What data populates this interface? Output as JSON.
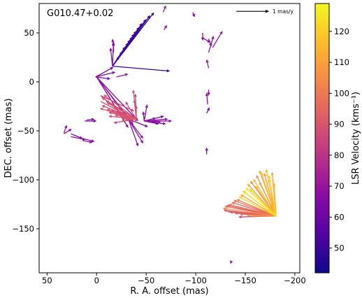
{
  "chart_data": {
    "type": "vector-map",
    "annotation": "G010.47+0.02",
    "xlabel": "R. A. offset (mas)",
    "ylabel": "DEC. offset (mas)",
    "xlim": [
      58,
      -205
    ],
    "ylim": [
      -195,
      80
    ],
    "xticks": [
      50,
      0,
      -50,
      -100,
      -150,
      -200
    ],
    "yticks": [
      50,
      0,
      -50,
      -100,
      -150
    ],
    "xtick_labels": [
      "50",
      "0",
      "−50",
      "−100",
      "−150",
      "−200"
    ],
    "ytick_labels": [
      "50",
      "0",
      "−50",
      "−100",
      "−150"
    ],
    "scale_arrow": {
      "label": "1 mas/y",
      "x": -141,
      "y": 72,
      "dx": -33,
      "dy": 0
    },
    "colorbar": {
      "label": "LSR Velocity (kms⁻¹)",
      "min": 42,
      "max": 129,
      "ticks": [
        50,
        60,
        70,
        80,
        90,
        100,
        110,
        120
      ],
      "tick_labels": [
        "50",
        "60",
        "70",
        "80",
        "90",
        "100",
        "110",
        "120"
      ],
      "colormap": "plasma"
    },
    "arrows": [
      {
        "x": -16,
        "y": 16,
        "dx": -42,
        "dy": 55,
        "v": 47
      },
      {
        "x": -16,
        "y": 16,
        "dx": -38,
        "dy": 52,
        "v": 48
      },
      {
        "x": -16,
        "y": 16,
        "dx": -34,
        "dy": 48,
        "v": 49
      },
      {
        "x": -16,
        "y": 16,
        "dx": -30,
        "dy": 44,
        "v": 50
      },
      {
        "x": -16,
        "y": 16,
        "dx": -27,
        "dy": 40,
        "v": 51
      },
      {
        "x": -16,
        "y": 16,
        "dx": -24,
        "dy": 36,
        "v": 52
      },
      {
        "x": -16,
        "y": 16,
        "dx": -22,
        "dy": 33,
        "v": 50
      },
      {
        "x": -16,
        "y": 16,
        "dx": -20,
        "dy": 30,
        "v": 53
      },
      {
        "x": -16,
        "y": 16,
        "dx": -18,
        "dy": 27,
        "v": 49
      },
      {
        "x": -16,
        "y": 16,
        "dx": -16,
        "dy": 24,
        "v": 51
      },
      {
        "x": -16,
        "y": 16,
        "dx": -13,
        "dy": 20,
        "v": 48
      },
      {
        "x": -16,
        "y": 16,
        "dx": -10,
        "dy": 15,
        "v": 52
      },
      {
        "x": -16,
        "y": 16,
        "dx": -7,
        "dy": 10,
        "v": 54
      },
      {
        "x": -16,
        "y": 16,
        "dx": -58,
        "dy": -5,
        "v": 50
      },
      {
        "x": -16,
        "y": 16,
        "dx": -1,
        "dy": 24,
        "v": 64
      },
      {
        "x": -16,
        "y": 16,
        "dx": 2,
        "dy": 19,
        "v": 66
      },
      {
        "x": -17,
        "y": 30,
        "dx": 0,
        "dy": 11,
        "v": 62
      },
      {
        "x": -17,
        "y": 35,
        "dx": 1,
        "dy": 9,
        "v": 68
      },
      {
        "x": -20,
        "y": 5,
        "dx": -12,
        "dy": 3,
        "v": 70
      },
      {
        "x": 1,
        "y": 5,
        "dx": -20,
        "dy": 5,
        "v": 64
      },
      {
        "x": 1,
        "y": 5,
        "dx": -18,
        "dy": 10,
        "v": 66
      },
      {
        "x": 1,
        "y": 5,
        "dx": -15,
        "dy": -2,
        "v": 62
      },
      {
        "x": -67,
        "y": 71,
        "dx": -3,
        "dy": 7,
        "v": 70
      },
      {
        "x": -97,
        "y": 71,
        "dx": -2,
        "dy": -5,
        "v": 66
      },
      {
        "x": -68,
        "y": 53,
        "dx": -3,
        "dy": 5,
        "v": 70
      },
      {
        "x": -107,
        "y": 45,
        "dx": -8,
        "dy": -5,
        "v": 62
      },
      {
        "x": -107,
        "y": 50,
        "dx": 0,
        "dy": -8,
        "v": 66
      },
      {
        "x": -113,
        "y": 44,
        "dx": -3,
        "dy": -8,
        "v": 68
      },
      {
        "x": -117,
        "y": 35,
        "dx": -10,
        "dy": 17,
        "v": 70
      },
      {
        "x": -113,
        "y": 30,
        "dx": -5,
        "dy": 17,
        "v": 66
      },
      {
        "x": -113,
        "y": 14,
        "dx": 2,
        "dy": 9,
        "v": 70
      },
      {
        "x": -113,
        "y": -8,
        "dx": 0,
        "dy": -6,
        "v": 66
      },
      {
        "x": -112,
        "y": -23,
        "dx": 1,
        "dy": 12,
        "v": 68
      },
      {
        "x": -111,
        "y": -32,
        "dx": -3,
        "dy": 6,
        "v": 62
      },
      {
        "x": -111,
        "y": -74,
        "dx": 0,
        "dy": 7,
        "v": 66
      },
      {
        "x": -136,
        "y": -183,
        "dx": 1,
        "dy": -3,
        "v": 68
      },
      {
        "x": 0,
        "y": 5,
        "dx": -42,
        "dy": -45,
        "v": 66
      },
      {
        "x": 0,
        "y": 5,
        "dx": -37,
        "dy": -48,
        "v": 70
      },
      {
        "x": 0,
        "y": 5,
        "dx": -32,
        "dy": -52,
        "v": 64
      },
      {
        "x": 0,
        "y": 5,
        "dx": -47,
        "dy": -63,
        "v": 68
      },
      {
        "x": -4,
        "y": -14,
        "dx": -33,
        "dy": -28,
        "v": 85
      },
      {
        "x": -4,
        "y": -20,
        "dx": -38,
        "dy": -20,
        "v": 88
      },
      {
        "x": -4,
        "y": -14,
        "dx": -34,
        "dy": -16,
        "v": 86
      },
      {
        "x": -40,
        "y": -38,
        "dx": 33,
        "dy": 25,
        "v": 87
      },
      {
        "x": -40,
        "y": -38,
        "dx": 30,
        "dy": 17,
        "v": 89
      },
      {
        "x": -40,
        "y": -38,
        "dx": 26,
        "dy": 9,
        "v": 85
      },
      {
        "x": -40,
        "y": -38,
        "dx": 28,
        "dy": 3,
        "v": 88
      },
      {
        "x": -40,
        "y": -38,
        "dx": 22,
        "dy": 4,
        "v": 90
      },
      {
        "x": -40,
        "y": -38,
        "dx": 15,
        "dy": 1,
        "v": 86
      },
      {
        "x": -40,
        "y": -38,
        "dx": 35,
        "dy": 22,
        "v": 90
      },
      {
        "x": -40,
        "y": -38,
        "dx": 31,
        "dy": 19,
        "v": 84
      },
      {
        "x": -40,
        "y": -38,
        "dx": 24,
        "dy": 14,
        "v": 88
      },
      {
        "x": -40,
        "y": -38,
        "dx": 20,
        "dy": 8,
        "v": 86
      },
      {
        "x": -40,
        "y": -38,
        "dx": 11,
        "dy": 18,
        "v": 87
      },
      {
        "x": -40,
        "y": -38,
        "dx": 3,
        "dy": 30,
        "v": 89
      },
      {
        "x": -40,
        "y": -38,
        "dx": 1,
        "dy": 26,
        "v": 85
      },
      {
        "x": -40,
        "y": -38,
        "dx": 2,
        "dy": 20,
        "v": 88
      },
      {
        "x": -40,
        "y": -38,
        "dx": 0,
        "dy": 14,
        "v": 86
      },
      {
        "x": -40,
        "y": -38,
        "dx": 37,
        "dy": 11,
        "v": 91
      },
      {
        "x": -40,
        "y": -38,
        "dx": 28,
        "dy": 7,
        "v": 87
      },
      {
        "x": -40,
        "y": -38,
        "dx": 23,
        "dy": -4,
        "v": 85
      },
      {
        "x": -40,
        "y": -38,
        "dx": 15,
        "dy": -2,
        "v": 89
      },
      {
        "x": -40,
        "y": -38,
        "dx": 10,
        "dy": -1,
        "v": 84
      },
      {
        "x": -40,
        "y": -38,
        "dx": 35,
        "dy": 14,
        "v": 86
      },
      {
        "x": -40,
        "y": -38,
        "dx": 30,
        "dy": 10,
        "v": 88
      },
      {
        "x": -40,
        "y": -38,
        "dx": 12,
        "dy": 0,
        "v": 90
      },
      {
        "x": -40,
        "y": -38,
        "dx": 18,
        "dy": 6,
        "v": 87
      },
      {
        "x": -32,
        "y": -38,
        "dx": -10,
        "dy": -28,
        "v": 66
      },
      {
        "x": -32,
        "y": -38,
        "dx": -20,
        "dy": -8,
        "v": 64
      },
      {
        "x": -32,
        "y": -38,
        "dx": -5,
        "dy": -6,
        "v": 62
      },
      {
        "x": -32,
        "y": -38,
        "dx": -15,
        "dy": -25,
        "v": 68
      },
      {
        "x": -48,
        "y": -40,
        "dx": -3,
        "dy": 17,
        "v": 64
      },
      {
        "x": -48,
        "y": -40,
        "dx": 1,
        "dy": 10,
        "v": 66
      },
      {
        "x": -48,
        "y": -40,
        "dx": -20,
        "dy": 5,
        "v": 62
      },
      {
        "x": -48,
        "y": -40,
        "dx": -28,
        "dy": 0,
        "v": 68
      },
      {
        "x": -48,
        "y": -40,
        "dx": -22,
        "dy": -3,
        "v": 66
      },
      {
        "x": -48,
        "y": -40,
        "dx": -17,
        "dy": -1,
        "v": 70
      },
      {
        "x": -48,
        "y": -40,
        "dx": -15,
        "dy": -3,
        "v": 64
      },
      {
        "x": -48,
        "y": -40,
        "dx": -24,
        "dy": 2,
        "v": 68
      },
      {
        "x": -48,
        "y": -40,
        "dx": -12,
        "dy": 3,
        "v": 65
      },
      {
        "x": 33,
        "y": -53,
        "dx": -8,
        "dy": 5,
        "v": 66
      },
      {
        "x": 33,
        "y": -52,
        "dx": -3,
        "dy": 8,
        "v": 68
      },
      {
        "x": 26,
        "y": -53,
        "dx": -12,
        "dy": -5,
        "v": 62
      },
      {
        "x": 26,
        "y": -56,
        "dx": -15,
        "dy": -3,
        "v": 66
      },
      {
        "x": 14,
        "y": -58,
        "dx": -12,
        "dy": -3,
        "v": 64
      },
      {
        "x": 14,
        "y": -60,
        "dx": -10,
        "dy": -2,
        "v": 70
      },
      {
        "x": 12,
        "y": -40,
        "dx": -12,
        "dy": 0,
        "v": 62
      },
      {
        "x": 10,
        "y": -39,
        "dx": -8,
        "dy": 1,
        "v": 66
      },
      {
        "x": -181,
        "y": -137,
        "dx": 17,
        "dy": 47,
        "v": 112
      },
      {
        "x": -181,
        "y": -137,
        "dx": 15,
        "dy": 45,
        "v": 118
      },
      {
        "x": -181,
        "y": -137,
        "dx": 12,
        "dy": 44,
        "v": 108
      },
      {
        "x": -181,
        "y": -137,
        "dx": 10,
        "dy": 48,
        "v": 115
      },
      {
        "x": -181,
        "y": -137,
        "dx": 7,
        "dy": 42,
        "v": 120
      },
      {
        "x": -181,
        "y": -137,
        "dx": 4,
        "dy": 45,
        "v": 110
      },
      {
        "x": -181,
        "y": -137,
        "dx": 2,
        "dy": 34,
        "v": 114
      },
      {
        "x": -181,
        "y": -137,
        "dx": 20,
        "dy": 42,
        "v": 106
      },
      {
        "x": -181,
        "y": -137,
        "dx": 23,
        "dy": 38,
        "v": 116
      },
      {
        "x": -181,
        "y": -137,
        "dx": 26,
        "dy": 36,
        "v": 104
      },
      {
        "x": -181,
        "y": -137,
        "dx": 29,
        "dy": 33,
        "v": 112
      },
      {
        "x": -181,
        "y": -137,
        "dx": 31,
        "dy": 29,
        "v": 125
      },
      {
        "x": -181,
        "y": -137,
        "dx": 34,
        "dy": 26,
        "v": 118
      },
      {
        "x": -181,
        "y": -137,
        "dx": 36,
        "dy": 22,
        "v": 110
      },
      {
        "x": -181,
        "y": -137,
        "dx": 38,
        "dy": 20,
        "v": 122
      },
      {
        "x": -181,
        "y": -137,
        "dx": 40,
        "dy": 17,
        "v": 103
      },
      {
        "x": -181,
        "y": -137,
        "dx": 43,
        "dy": 16,
        "v": 98
      },
      {
        "x": -181,
        "y": -137,
        "dx": 45,
        "dy": 14,
        "v": 95
      },
      {
        "x": -181,
        "y": -137,
        "dx": 48,
        "dy": 12,
        "v": 100
      },
      {
        "x": -181,
        "y": -137,
        "dx": 50,
        "dy": 11,
        "v": 92
      },
      {
        "x": -181,
        "y": -137,
        "dx": 52,
        "dy": 10,
        "v": 96
      },
      {
        "x": -181,
        "y": -137,
        "dx": 54,
        "dy": 8,
        "v": 105
      },
      {
        "x": -181,
        "y": -137,
        "dx": 53,
        "dy": 6,
        "v": 90
      },
      {
        "x": -181,
        "y": -137,
        "dx": 50,
        "dy": 5,
        "v": 94
      },
      {
        "x": -181,
        "y": -137,
        "dx": 47,
        "dy": 4,
        "v": 88
      },
      {
        "x": -181,
        "y": -137,
        "dx": 42,
        "dy": 3,
        "v": 92
      },
      {
        "x": -181,
        "y": -137,
        "dx": 37,
        "dy": 2,
        "v": 97
      },
      {
        "x": -181,
        "y": -137,
        "dx": 30,
        "dy": 1,
        "v": 102
      },
      {
        "x": -181,
        "y": -137,
        "dx": 25,
        "dy": 0,
        "v": 108
      },
      {
        "x": -181,
        "y": -137,
        "dx": 38,
        "dy": -1,
        "v": 85
      },
      {
        "x": -181,
        "y": -137,
        "dx": 33,
        "dy": 25,
        "v": 124
      },
      {
        "x": -181,
        "y": -137,
        "dx": 27,
        "dy": 28,
        "v": 120
      },
      {
        "x": -181,
        "y": -137,
        "dx": 21,
        "dy": 31,
        "v": 113
      },
      {
        "x": -181,
        "y": -137,
        "dx": 17,
        "dy": 35,
        "v": 109
      },
      {
        "x": -181,
        "y": -137,
        "dx": 8,
        "dy": 38,
        "v": 117
      }
    ]
  }
}
